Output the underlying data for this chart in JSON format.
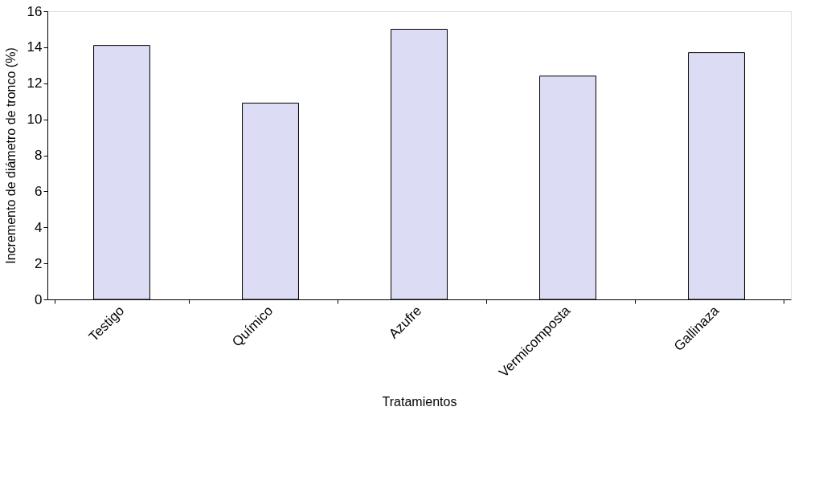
{
  "chart_data": {
    "type": "bar",
    "xlabel": "Tratamientos",
    "ylabel": "Incremento de diámetro de tronco (%)",
    "categories": [
      "Testigo",
      "Químico",
      "Azufre",
      "Vermicomposta",
      "Gallinaza"
    ],
    "values": [
      14.1,
      10.9,
      15.0,
      12.4,
      13.7
    ],
    "color": "#dcdcf4",
    "ylim": [
      0,
      16
    ],
    "yticks": [
      0,
      2,
      4,
      6,
      8,
      10,
      12,
      14,
      16
    ],
    "grid": false
  }
}
